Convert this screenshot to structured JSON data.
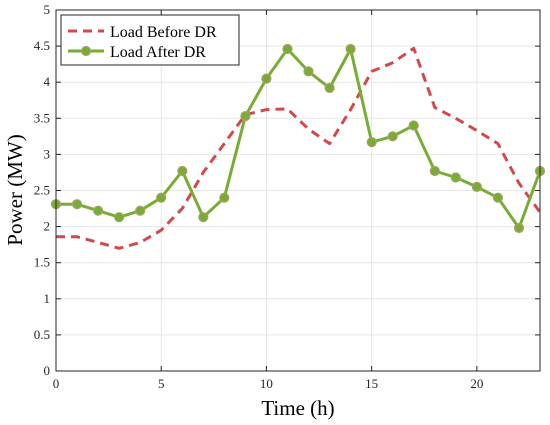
{
  "chart_data": {
    "type": "line",
    "xlabel": "Time (h)",
    "ylabel": "Power (MW)",
    "xlim": [
      0,
      23
    ],
    "ylim": [
      0,
      5
    ],
    "xticks": [
      0,
      5,
      10,
      15,
      20
    ],
    "yticks": [
      0,
      0.5,
      1,
      1.5,
      2,
      2.5,
      3,
      3.5,
      4,
      4.5,
      5
    ],
    "ytick_labels": [
      "0",
      "0.5",
      "1",
      "1.5",
      "2",
      "2.5",
      "3",
      "3.5",
      "4",
      "4.5",
      "5"
    ],
    "grid": true,
    "legend_position": "top-left",
    "x": [
      0,
      1,
      2,
      3,
      4,
      5,
      6,
      7,
      8,
      9,
      10,
      11,
      12,
      13,
      14,
      15,
      16,
      17,
      18,
      19,
      20,
      21,
      22,
      23
    ],
    "series": [
      {
        "name": "Load Before DR",
        "style": "dashed",
        "color": "#d1494e",
        "values": [
          1.86,
          1.86,
          1.78,
          1.7,
          1.78,
          1.95,
          2.25,
          2.75,
          3.15,
          3.55,
          3.62,
          3.63,
          3.35,
          3.15,
          3.62,
          4.15,
          4.27,
          4.47,
          3.65,
          3.5,
          3.33,
          3.15,
          2.6,
          2.2
        ]
      },
      {
        "name": "Load After DR",
        "style": "solid-markers",
        "color": "#78ad34",
        "values": [
          2.31,
          2.31,
          2.22,
          2.13,
          2.22,
          2.4,
          2.77,
          2.13,
          2.4,
          3.53,
          4.05,
          4.46,
          4.15,
          3.92,
          4.46,
          3.17,
          3.25,
          3.4,
          2.77,
          2.68,
          2.55,
          2.4,
          1.98,
          2.77
        ]
      }
    ]
  }
}
